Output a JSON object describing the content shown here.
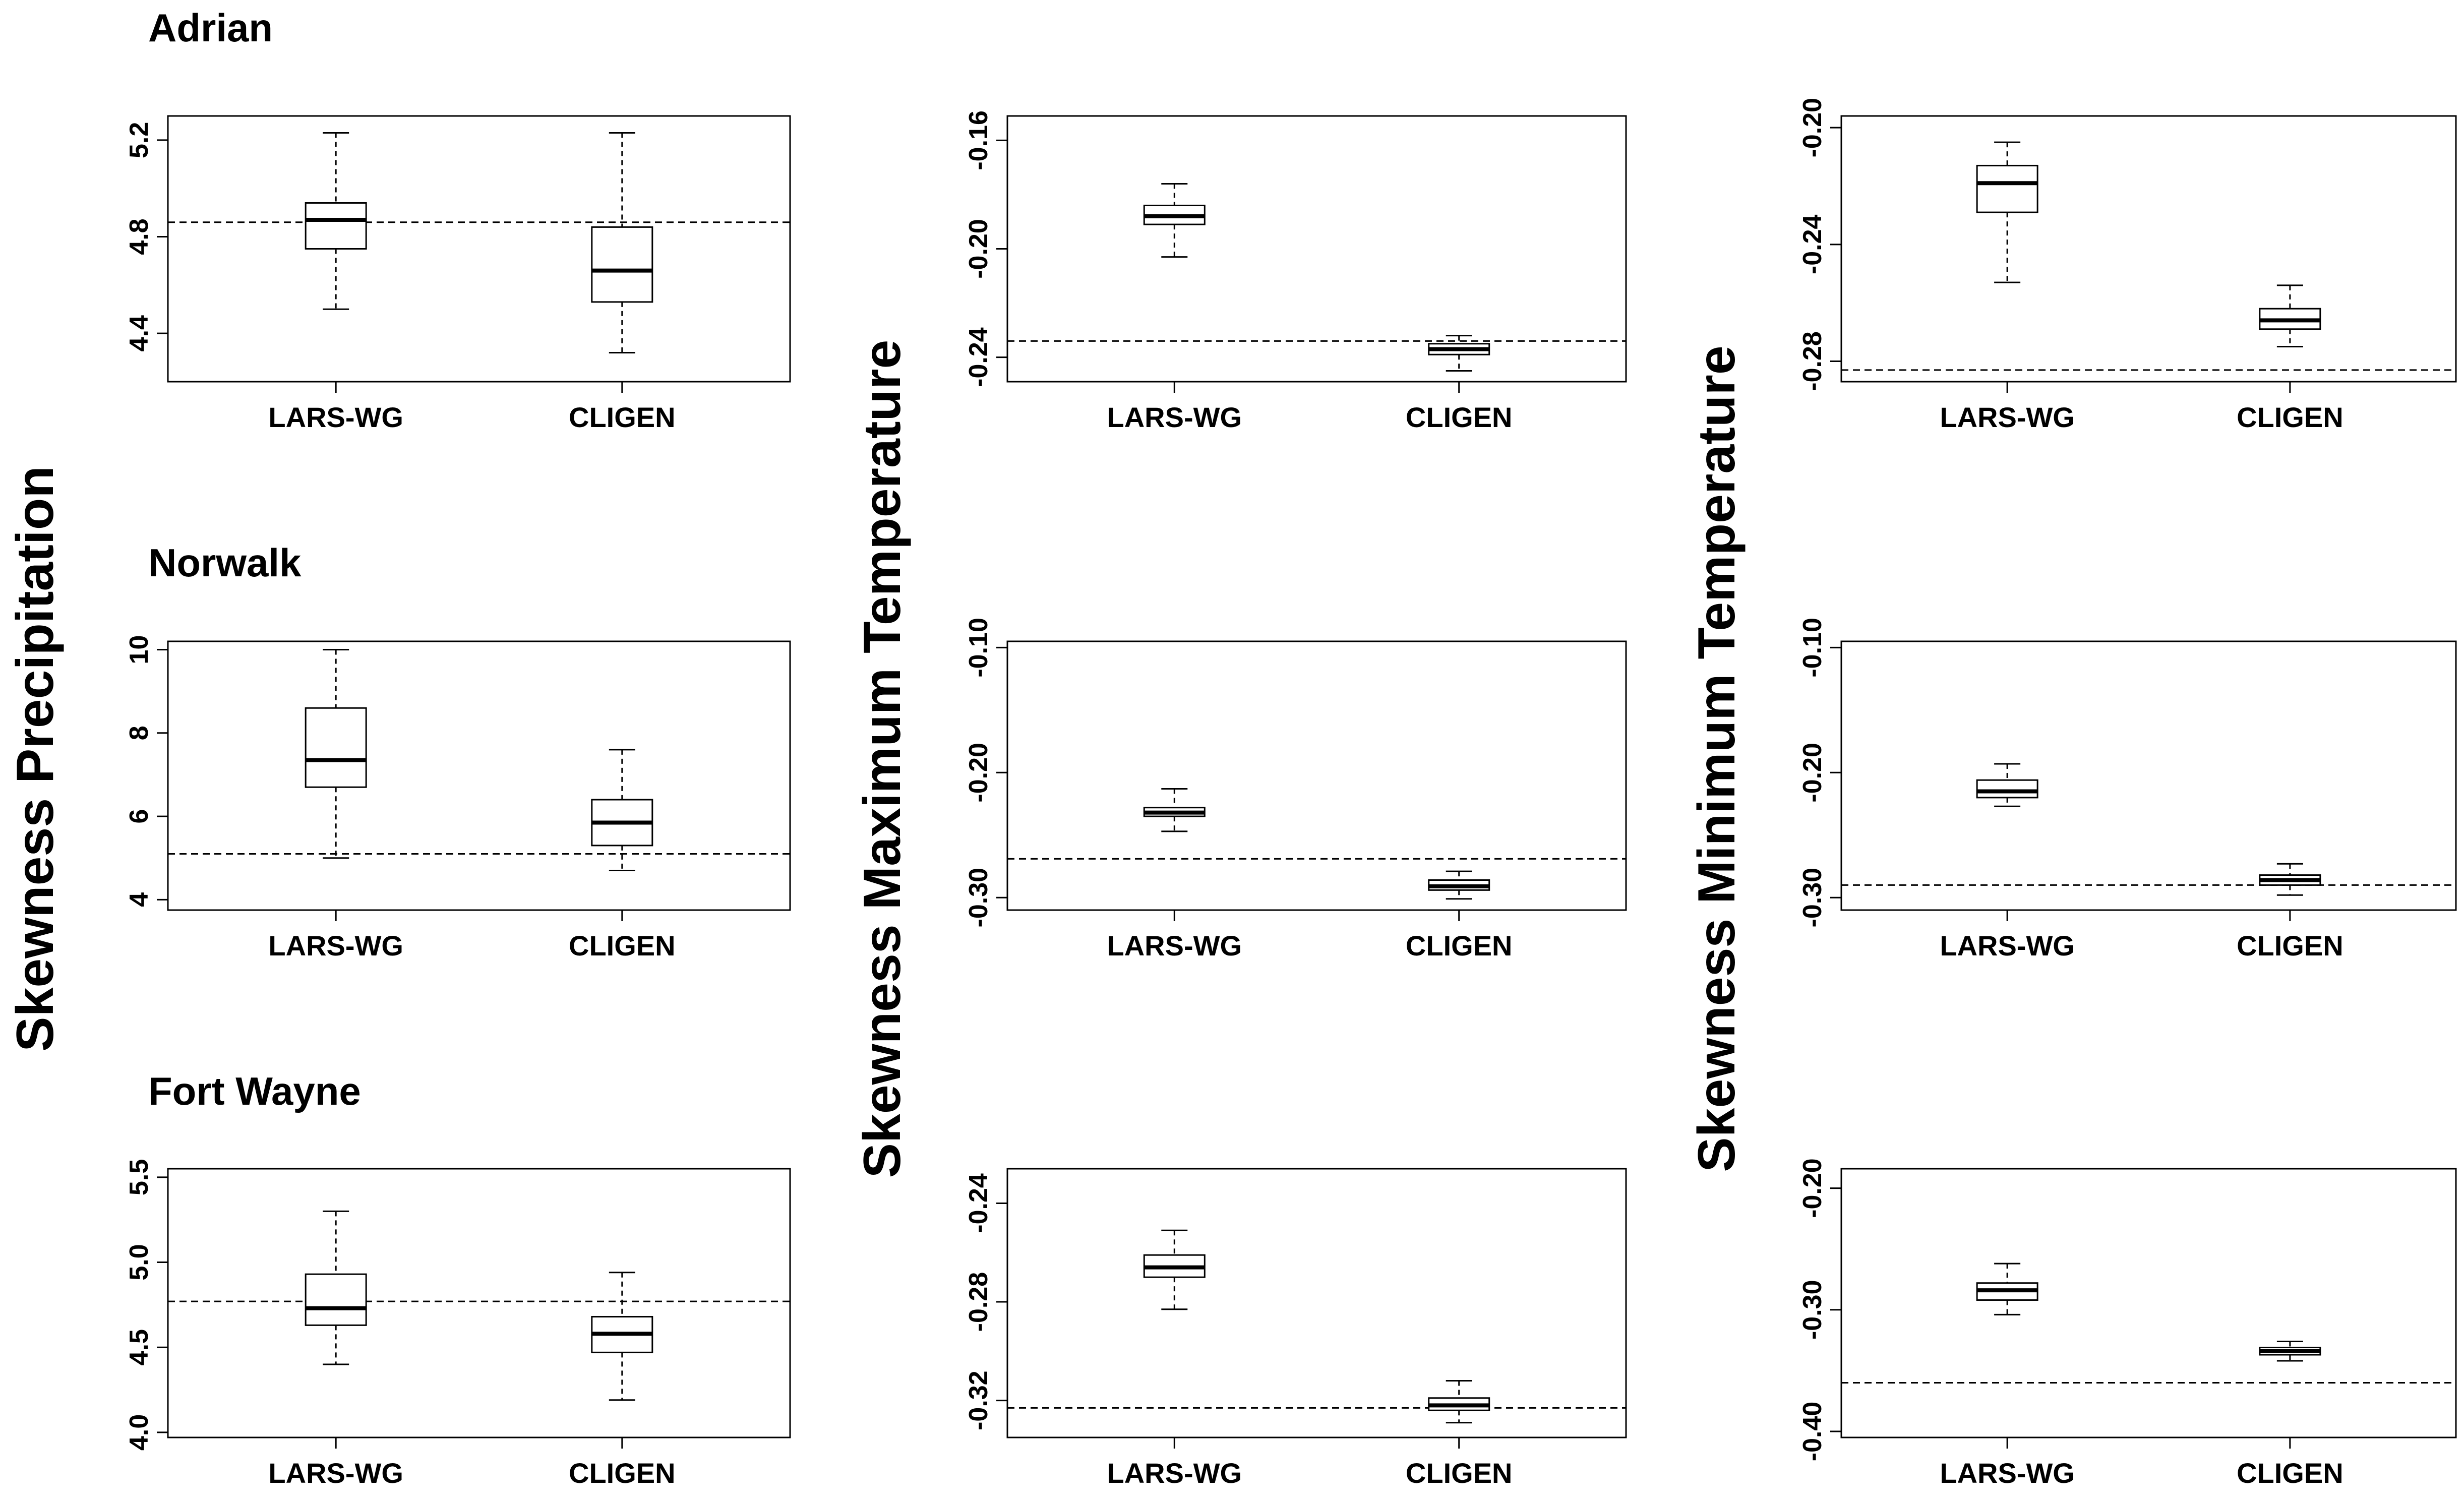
{
  "ylabels": {
    "precipitation": "Skewness Precipitation",
    "max_temperature": "Skewness Maximum Temperature",
    "min_temperature": "Skewness Minimum Temperature"
  },
  "sites": [
    "Adrian",
    "Norwalk",
    "Fort Wayne"
  ],
  "chart_data": [
    {
      "type": "boxplot",
      "site": "Adrian",
      "variable": "Skewness Precipitation",
      "categories": [
        "LARS-WG",
        "CLIGEN"
      ],
      "ylim": [
        4.2,
        5.3
      ],
      "ticks": [
        4.4,
        4.8,
        5.2
      ],
      "tick_labels": [
        "4.4",
        "4.8",
        "5.2"
      ],
      "observed": 4.86,
      "boxes": [
        {
          "name": "LARS-WG",
          "whisker_low": 4.5,
          "q1": 4.75,
          "median": 4.87,
          "q3": 4.94,
          "whisker_high": 5.23
        },
        {
          "name": "CLIGEN",
          "whisker_low": 4.32,
          "q1": 4.53,
          "median": 4.66,
          "q3": 4.84,
          "whisker_high": 5.23
        }
      ]
    },
    {
      "type": "boxplot",
      "site": "Adrian",
      "variable": "Skewness Maximum Temperature",
      "categories": [
        "LARS-WG",
        "CLIGEN"
      ],
      "ylim": [
        -0.249,
        -0.151
      ],
      "ticks": [
        -0.24,
        -0.2,
        -0.16
      ],
      "tick_labels": [
        "-0.24",
        "-0.20",
        "-0.16"
      ],
      "observed": -0.234,
      "boxes": [
        {
          "name": "LARS-WG",
          "whisker_low": -0.203,
          "q1": -0.191,
          "median": -0.188,
          "q3": -0.184,
          "whisker_high": -0.176
        },
        {
          "name": "CLIGEN",
          "whisker_low": -0.245,
          "q1": -0.239,
          "median": -0.237,
          "q3": -0.235,
          "whisker_high": -0.232
        }
      ]
    },
    {
      "type": "boxplot",
      "site": "Adrian",
      "variable": "Skewness Minimum Temperature",
      "categories": [
        "LARS-WG",
        "CLIGEN"
      ],
      "ylim": [
        -0.287,
        -0.196
      ],
      "ticks": [
        -0.28,
        -0.24,
        -0.2
      ],
      "tick_labels": [
        "-0.28",
        "-0.24",
        "-0.20"
      ],
      "observed": -0.283,
      "boxes": [
        {
          "name": "LARS-WG",
          "whisker_low": -0.253,
          "q1": -0.229,
          "median": -0.219,
          "q3": -0.213,
          "whisker_high": -0.205
        },
        {
          "name": "CLIGEN",
          "whisker_low": -0.275,
          "q1": -0.269,
          "median": -0.266,
          "q3": -0.262,
          "whisker_high": -0.254
        }
      ]
    },
    {
      "type": "boxplot",
      "site": "Norwalk",
      "variable": "Skewness Precipitation",
      "categories": [
        "LARS-WG",
        "CLIGEN"
      ],
      "ylim": [
        3.75,
        10.2
      ],
      "ticks": [
        4,
        6,
        8,
        10
      ],
      "tick_labels": [
        "4",
        "6",
        "8",
        "10"
      ],
      "observed": 5.1,
      "boxes": [
        {
          "name": "LARS-WG",
          "whisker_low": 5.0,
          "q1": 6.7,
          "median": 7.35,
          "q3": 8.6,
          "whisker_high": 10.0
        },
        {
          "name": "CLIGEN",
          "whisker_low": 4.7,
          "q1": 5.3,
          "median": 5.85,
          "q3": 6.4,
          "whisker_high": 7.6
        }
      ]
    },
    {
      "type": "boxplot",
      "site": "Norwalk",
      "variable": "Skewness Maximum Temperature",
      "categories": [
        "LARS-WG",
        "CLIGEN"
      ],
      "ylim": [
        -0.31,
        -0.095
      ],
      "ticks": [
        -0.3,
        -0.2,
        -0.1
      ],
      "tick_labels": [
        "-0.30",
        "-0.20",
        "-0.10"
      ],
      "observed": -0.269,
      "boxes": [
        {
          "name": "LARS-WG",
          "whisker_low": -0.247,
          "q1": -0.235,
          "median": -0.232,
          "q3": -0.228,
          "whisker_high": -0.213
        },
        {
          "name": "CLIGEN",
          "whisker_low": -0.301,
          "q1": -0.294,
          "median": -0.291,
          "q3": -0.286,
          "whisker_high": -0.279
        }
      ]
    },
    {
      "type": "boxplot",
      "site": "Norwalk",
      "variable": "Skewness Minimum Temperature",
      "categories": [
        "LARS-WG",
        "CLIGEN"
      ],
      "ylim": [
        -0.31,
        -0.095
      ],
      "ticks": [
        -0.3,
        -0.2,
        -0.1
      ],
      "tick_labels": [
        "-0.30",
        "-0.20",
        "-0.10"
      ],
      "observed": -0.29,
      "boxes": [
        {
          "name": "LARS-WG",
          "whisker_low": -0.227,
          "q1": -0.22,
          "median": -0.215,
          "q3": -0.206,
          "whisker_high": -0.193
        },
        {
          "name": "CLIGEN",
          "whisker_low": -0.298,
          "q1": -0.29,
          "median": -0.286,
          "q3": -0.282,
          "whisker_high": -0.273
        }
      ]
    },
    {
      "type": "boxplot",
      "site": "Fort Wayne",
      "variable": "Skewness Precipitation",
      "categories": [
        "LARS-WG",
        "CLIGEN"
      ],
      "ylim": [
        3.97,
        5.55
      ],
      "ticks": [
        4.0,
        4.5,
        5.0,
        5.5
      ],
      "tick_labels": [
        "4.0",
        "4.5",
        "5.0",
        "5.5"
      ],
      "observed": 4.77,
      "boxes": [
        {
          "name": "LARS-WG",
          "whisker_low": 4.4,
          "q1": 4.63,
          "median": 4.73,
          "q3": 4.93,
          "whisker_high": 5.3
        },
        {
          "name": "CLIGEN",
          "whisker_low": 4.19,
          "q1": 4.47,
          "median": 4.58,
          "q3": 4.68,
          "whisker_high": 4.94
        }
      ]
    },
    {
      "type": "boxplot",
      "site": "Fort Wayne",
      "variable": "Skewness Maximum Temperature",
      "categories": [
        "LARS-WG",
        "CLIGEN"
      ],
      "ylim": [
        -0.335,
        -0.226
      ],
      "ticks": [
        -0.32,
        -0.28,
        -0.24
      ],
      "tick_labels": [
        "-0.32",
        "-0.28",
        "-0.24"
      ],
      "observed": -0.323,
      "boxes": [
        {
          "name": "LARS-WG",
          "whisker_low": -0.283,
          "q1": -0.27,
          "median": -0.266,
          "q3": -0.261,
          "whisker_high": -0.251
        },
        {
          "name": "CLIGEN",
          "whisker_low": -0.329,
          "q1": -0.324,
          "median": -0.322,
          "q3": -0.319,
          "whisker_high": -0.312
        }
      ]
    },
    {
      "type": "boxplot",
      "site": "Fort Wayne",
      "variable": "Skewness Minimum Temperature",
      "categories": [
        "LARS-WG",
        "CLIGEN"
      ],
      "ylim": [
        -0.405,
        -0.184
      ],
      "ticks": [
        -0.4,
        -0.3,
        -0.2
      ],
      "tick_labels": [
        "-0.40",
        "-0.30",
        "-0.20"
      ],
      "observed": -0.36,
      "boxes": [
        {
          "name": "LARS-WG",
          "whisker_low": -0.304,
          "q1": -0.292,
          "median": -0.284,
          "q3": -0.278,
          "whisker_high": -0.262
        },
        {
          "name": "CLIGEN",
          "whisker_low": -0.342,
          "q1": -0.337,
          "median": -0.334,
          "q3": -0.331,
          "whisker_high": -0.326
        }
      ]
    }
  ]
}
